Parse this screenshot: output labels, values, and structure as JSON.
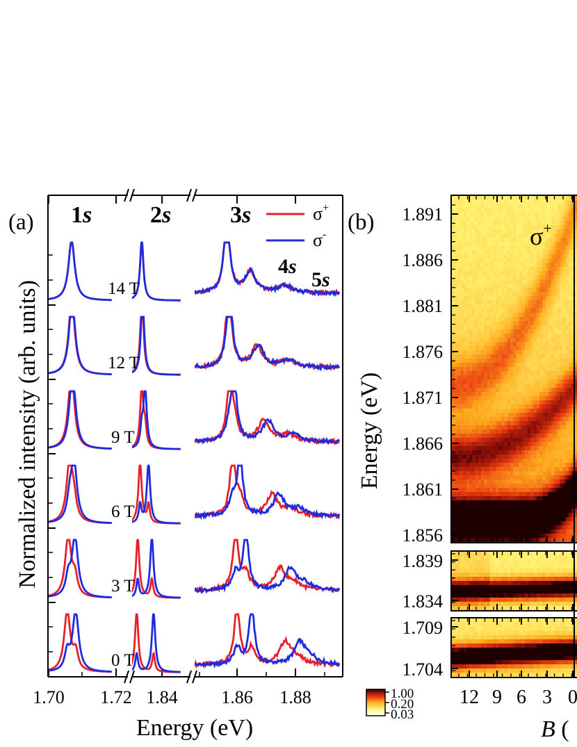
{
  "panel_a": {
    "label": "(a)",
    "ylabel": "Normalized intensity (arb. units)",
    "xlabel": "Energy (eV)",
    "peak_labels": [
      {
        "base": "1",
        "italic": "s"
      },
      {
        "base": "2",
        "italic": "s"
      },
      {
        "base": "3",
        "italic": "s"
      },
      {
        "base": "4",
        "italic": "s"
      },
      {
        "base": "5",
        "italic": "s"
      }
    ],
    "legend": [
      {
        "base": "σ",
        "sup": "+",
        "color": "#e8202a"
      },
      {
        "base": "σ",
        "sup": "-",
        "color": "#1e2be0"
      }
    ],
    "field_labels": [
      "14 T",
      "12 T",
      "9 T",
      "6 T",
      "3 T",
      "0 T"
    ],
    "x_ticks": [
      "1.70",
      "1.72",
      "1.84",
      "1.86",
      "1.88"
    ]
  },
  "panel_b": {
    "label": "(b)",
    "ylabel": "Energy (eV)",
    "xlabel_italic": "B",
    "xlabel_rest": " (",
    "polarization_label": {
      "base": "σ",
      "sup": "+"
    },
    "y_ticks_top": [
      "1.891",
      "1.886",
      "1.881",
      "1.876",
      "1.871",
      "1.866",
      "1.861",
      "1.856"
    ],
    "y_ticks_mid": [
      "1.839",
      "1.834"
    ],
    "y_ticks_bot": [
      "1.709",
      "1.704"
    ],
    "x_ticks": [
      "12",
      "9",
      "6",
      "3",
      "0"
    ],
    "colorbar_labels": [
      "1.00",
      "0.20",
      "0.03"
    ]
  },
  "chart_data": [
    {
      "type": "line",
      "title": "",
      "xlabel": "Energy (eV)",
      "ylabel": "Normalized intensity (arb. units)",
      "x_segments": [
        [
          1.695,
          1.72
        ],
        [
          1.828,
          1.845
        ],
        [
          1.845,
          1.895
        ]
      ],
      "x_ticks": [
        1.7,
        1.72,
        1.84,
        1.86,
        1.88
      ],
      "fields_T": [
        14,
        12,
        9,
        6,
        3,
        0
      ],
      "series": [
        {
          "name": "σ+",
          "peaks_eV": {
            "1s": [
              1.7055,
              1.7058,
              1.7062,
              1.7066,
              1.7068,
              1.7068
            ],
            "2s": [
              1.8325,
              1.8328,
              1.8335,
              1.834,
              1.834,
              1.834
            ],
            "3s": [
              1.86,
              1.8595,
              1.8585,
              1.8575,
              1.857,
              1.8565
            ]
          }
        },
        {
          "name": "σ-",
          "peaks_eV": {
            "1s": [
              1.708,
              1.7078,
              1.7075,
              1.7072,
              1.707,
              1.7068
            ],
            "2s": [
              1.8375,
              1.837,
              1.836,
              1.835,
              1.8343,
              1.834
            ],
            "3s": [
              1.865,
              1.863,
              1.861,
              1.859,
              1.8575,
              1.8565
            ]
          }
        }
      ],
      "annotations": [
        "4s",
        "5s"
      ]
    },
    {
      "type": "heatmap",
      "title": "",
      "xlabel": "B (",
      "ylabel": "Energy (eV)",
      "x_ticks": [
        12,
        9,
        6,
        3,
        0
      ],
      "ylim_segments": [
        [
          1.855,
          1.893
        ],
        [
          1.832,
          1.84
        ],
        [
          1.703,
          1.71
        ]
      ],
      "colorbar": {
        "scale": "log",
        "range": [
          0.03,
          1.0
        ],
        "ticks": [
          1.0,
          0.2,
          0.03
        ]
      },
      "label": "σ+"
    }
  ]
}
